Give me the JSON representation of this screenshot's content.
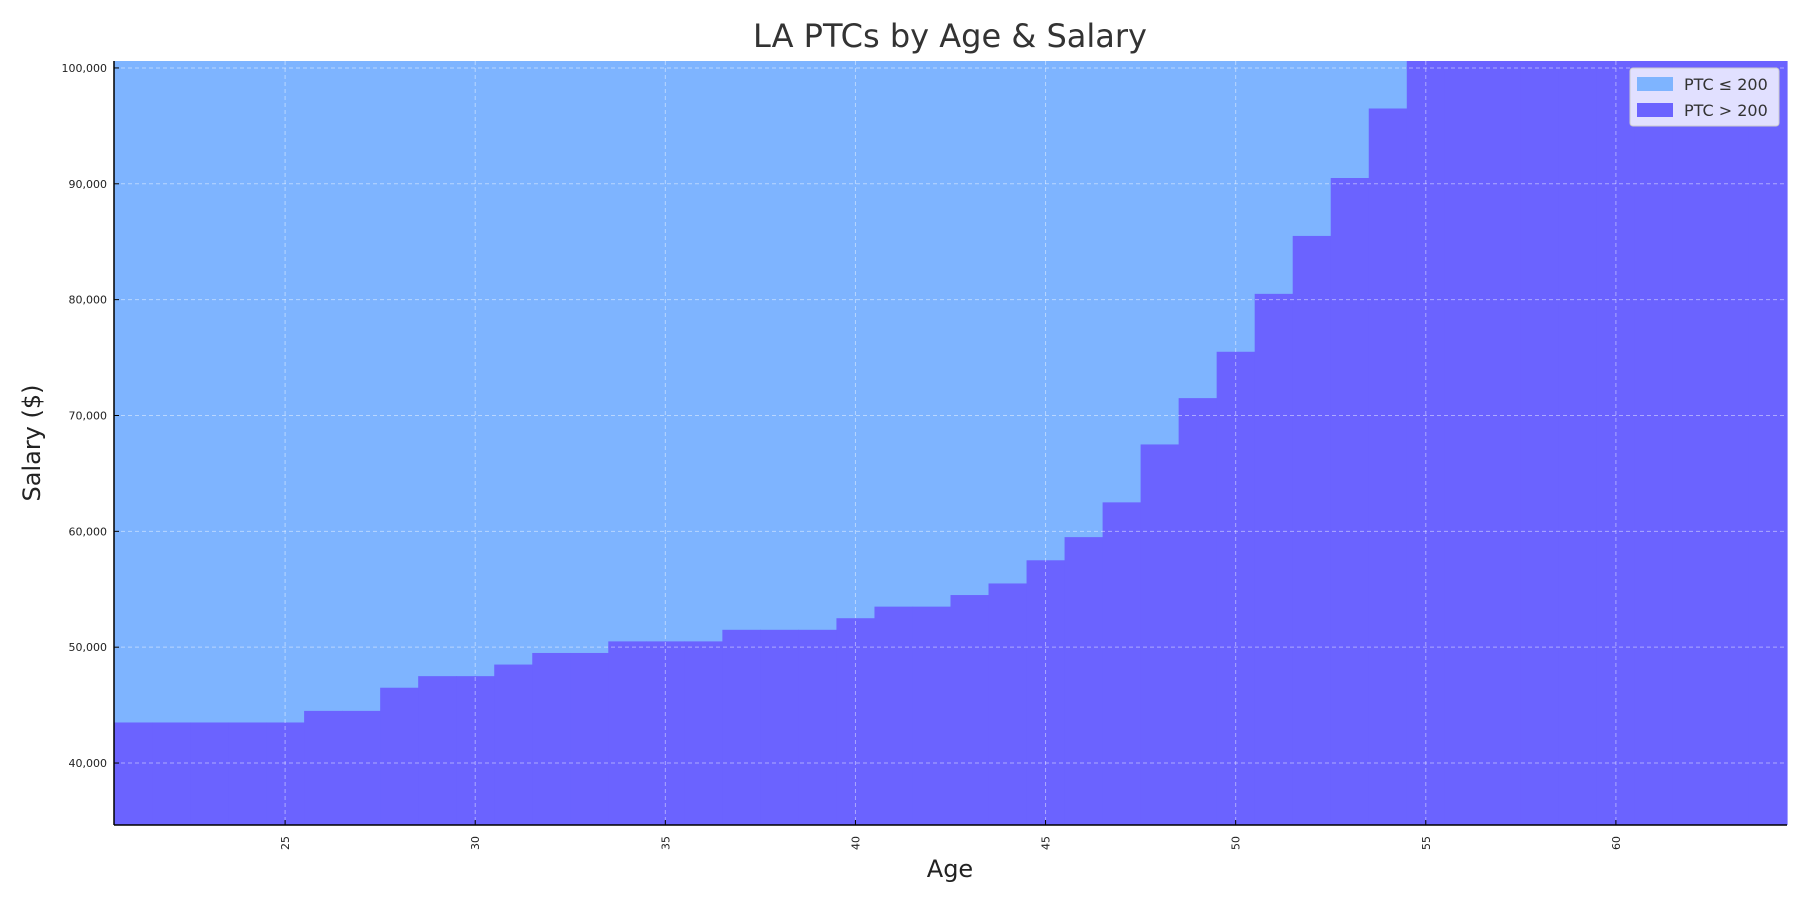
{
  "chart_data": {
    "type": "area",
    "title": "LA PTCs by Age & Salary",
    "xlabel": "Age",
    "ylabel": "Salary ($)",
    "xlim": [
      20.5,
      64.5
    ],
    "ylim": [
      34650,
      100600
    ],
    "x_ticks": [
      25,
      30,
      35,
      40,
      45,
      50,
      55,
      60
    ],
    "y_ticks": [
      40000,
      50000,
      60000,
      70000,
      80000,
      90000,
      100000
    ],
    "y_tick_labels": [
      "40,000",
      "50,000",
      "60,000",
      "70,000",
      "80,000",
      "90,000",
      "100,000"
    ],
    "grid": true,
    "legend_position": "top-right",
    "series": [
      {
        "name": "PTC ≤ 200",
        "color": "#7eb4ff"
      },
      {
        "name": "PTC > 200",
        "color": "#6b63ff"
      }
    ],
    "x": [
      21,
      22,
      23,
      24,
      25,
      26,
      27,
      28,
      29,
      30,
      31,
      32,
      33,
      34,
      35,
      36,
      37,
      38,
      39,
      40,
      41,
      42,
      43,
      44,
      45,
      46,
      47,
      48,
      49,
      50,
      51,
      52,
      53,
      54,
      55,
      56,
      57,
      58,
      59,
      60,
      61,
      62,
      63,
      64
    ],
    "threshold_salary": [
      43500,
      43500,
      43500,
      43500,
      43500,
      44500,
      44500,
      46500,
      47500,
      47500,
      48500,
      49500,
      49500,
      50500,
      50500,
      50500,
      51500,
      51500,
      51500,
      52500,
      53500,
      53500,
      54500,
      55500,
      57500,
      59500,
      62500,
      67500,
      71500,
      75500,
      80500,
      85500,
      90500,
      96500,
      100600,
      100600,
      100600,
      100600,
      100600,
      100600,
      100600,
      100600,
      100600,
      100600
    ]
  }
}
